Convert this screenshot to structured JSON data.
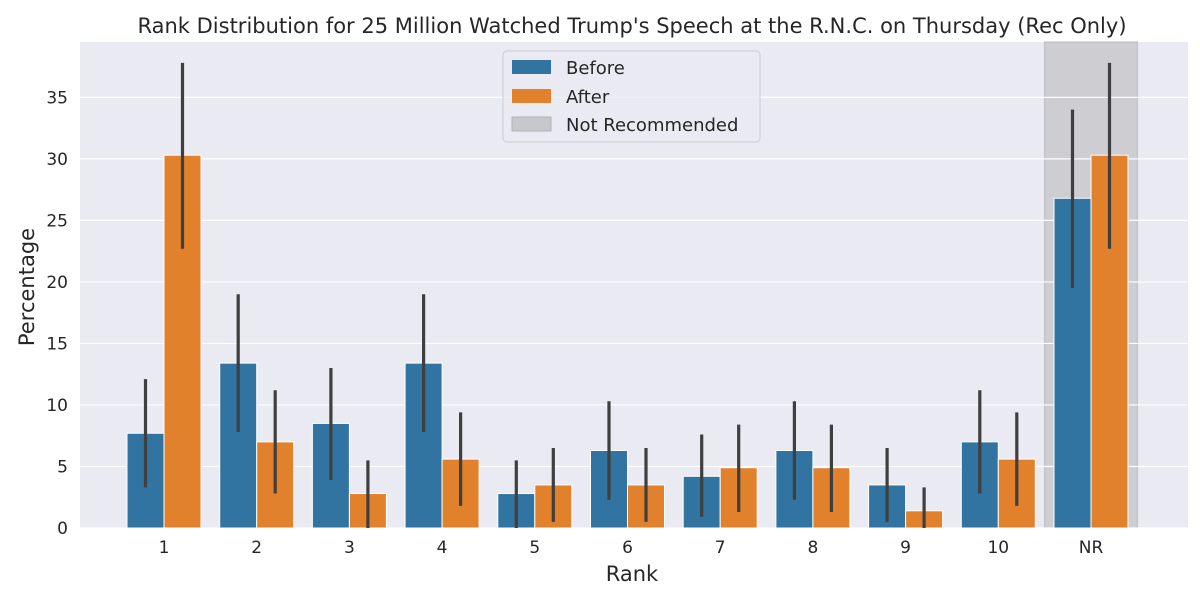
{
  "chart_data": {
    "type": "bar",
    "title": "Rank Distribution for 25 Million Watched Trump's Speech at the R.N.C. on Thursday (Rec Only)",
    "xlabel": "Rank",
    "ylabel": "Percentage",
    "categories": [
      "1",
      "2",
      "3",
      "4",
      "5",
      "6",
      "7",
      "8",
      "9",
      "10",
      "NR"
    ],
    "ylim": [
      0,
      39.5
    ],
    "yticks": [
      0,
      5,
      10,
      15,
      20,
      25,
      30,
      35
    ],
    "grid": true,
    "legend_position": "top-center",
    "highlight": {
      "category": "NR",
      "label": "Not Recommended",
      "color": "#c8c8cc"
    },
    "series": [
      {
        "name": "Before",
        "color": "#3274a1",
        "values": [
          7.7,
          13.4,
          8.5,
          13.4,
          2.8,
          6.3,
          4.2,
          6.3,
          3.5,
          7.0,
          26.8
        ],
        "ci_low": [
          3.3,
          7.8,
          3.9,
          7.8,
          0.0,
          2.3,
          0.9,
          2.3,
          0.5,
          2.8,
          19.5
        ],
        "ci_high": [
          12.1,
          19.0,
          13.0,
          19.0,
          5.5,
          10.3,
          7.6,
          10.3,
          6.5,
          11.2,
          34.0
        ]
      },
      {
        "name": "After",
        "color": "#e1812c",
        "values": [
          30.3,
          7.0,
          2.8,
          5.6,
          3.5,
          3.5,
          4.9,
          4.9,
          1.4,
          5.6,
          30.3
        ],
        "ci_low": [
          22.7,
          2.8,
          0.0,
          1.8,
          0.5,
          0.5,
          1.3,
          1.3,
          0.0,
          1.8,
          22.7
        ],
        "ci_high": [
          37.8,
          11.2,
          5.5,
          9.4,
          6.5,
          6.5,
          8.4,
          8.4,
          3.3,
          9.4,
          37.8
        ]
      }
    ]
  }
}
